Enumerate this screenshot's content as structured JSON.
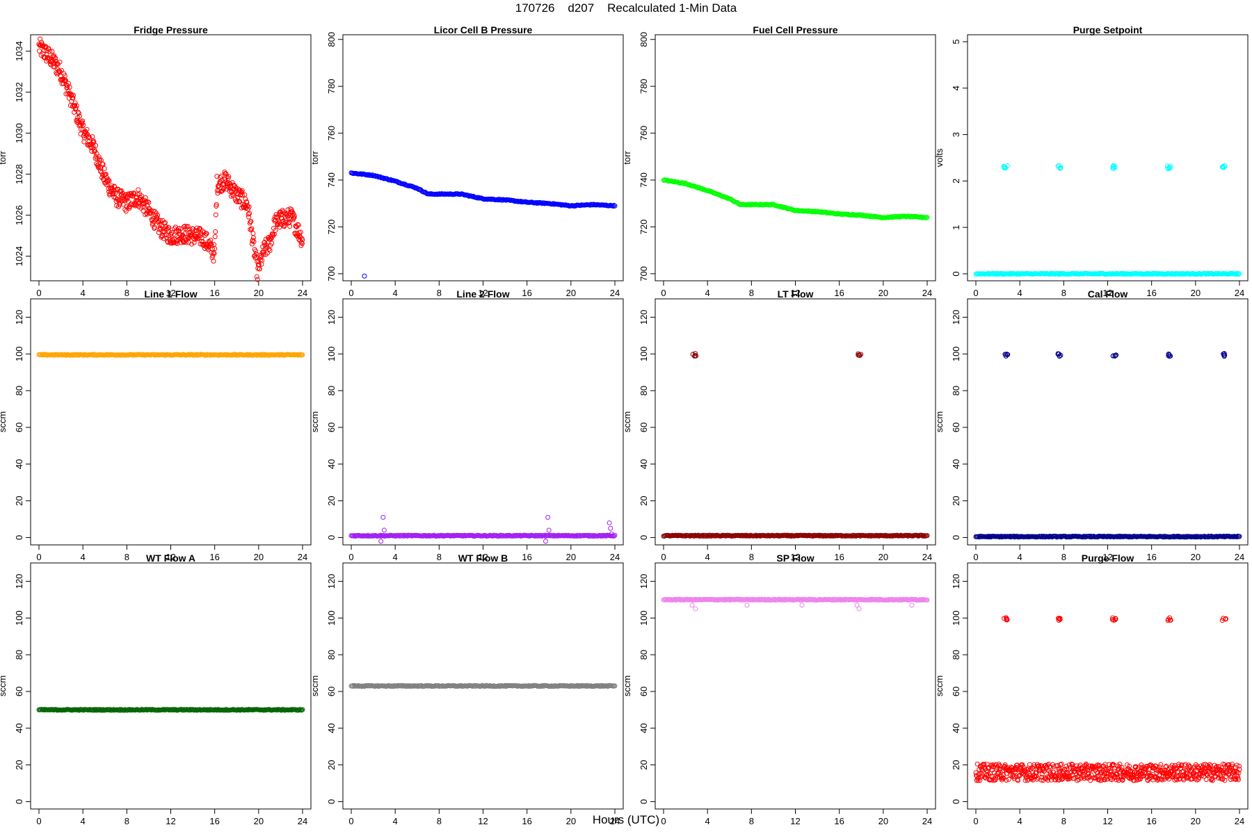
{
  "figure": {
    "title": "170726    d207    Recalculated 1-Min Data",
    "xlabel": "Hours (UTC)"
  },
  "chart_data": [
    {
      "type": "scatter",
      "title": "Fridge Pressure",
      "ylabel": "torr",
      "color": "#ff0000",
      "marker": "open-circle",
      "xlim": [
        0,
        24
      ],
      "ylim": [
        1022.8,
        1034.8
      ],
      "xticks": [
        0,
        4,
        8,
        12,
        16,
        20,
        24
      ],
      "yticks": [
        1024,
        1026,
        1028,
        1030,
        1032,
        1034
      ],
      "series": [
        {
          "x": [
            0,
            1,
            2,
            3,
            4,
            5,
            6,
            7,
            8,
            9,
            10,
            11,
            12,
            13,
            14,
            15,
            16,
            16.2,
            17,
            18,
            19,
            19.9,
            20.5,
            21,
            21.5,
            22,
            23,
            24
          ],
          "y": [
            1034.2,
            1033.7,
            1033.0,
            1031.6,
            1030.1,
            1029.3,
            1027.8,
            1026.9,
            1026.6,
            1026.9,
            1026.2,
            1025.4,
            1025.0,
            1025.1,
            1025.0,
            1024.9,
            1024.1,
            1027.5,
            1027.7,
            1027.0,
            1026.5,
            1023.2,
            1024.3,
            1024.6,
            1025.6,
            1025.8,
            1025.9,
            1024.8
          ]
        }
      ]
    },
    {
      "type": "scatter",
      "title": "Licor Cell B Pressure",
      "ylabel": "torr",
      "color": "#0000ff",
      "marker": "open-circle",
      "xlim": [
        0,
        24
      ],
      "ylim": [
        697,
        802
      ],
      "xticks": [
        0,
        4,
        8,
        12,
        16,
        20,
        24
      ],
      "yticks": [
        700,
        720,
        740,
        760,
        780,
        800
      ],
      "series": [
        {
          "x": [
            0,
            2,
            4,
            6,
            7,
            8,
            10,
            12,
            14,
            16,
            18,
            20,
            22,
            24
          ],
          "y": [
            743,
            742,
            739.5,
            736.5,
            734,
            734,
            734,
            732,
            731.5,
            730.5,
            730,
            729,
            729.5,
            729
          ]
        },
        {
          "x": [
            1.2
          ],
          "y": [
            699
          ]
        }
      ]
    },
    {
      "type": "scatter",
      "title": "Fuel Cell Pressure",
      "ylabel": "torr",
      "color": "#00ff00",
      "marker": "open-circle",
      "xlim": [
        0,
        24
      ],
      "ylim": [
        697,
        802
      ],
      "xticks": [
        0,
        4,
        8,
        12,
        16,
        20,
        24
      ],
      "yticks": [
        700,
        720,
        740,
        760,
        780,
        800
      ],
      "series": [
        {
          "x": [
            0,
            2,
            4,
            6,
            7,
            8,
            10,
            12,
            14,
            16,
            18,
            20,
            22,
            24
          ],
          "y": [
            740,
            738.5,
            735.5,
            732,
            729.5,
            729.5,
            729.5,
            727,
            726.5,
            725.5,
            725,
            724,
            724.5,
            724
          ]
        }
      ]
    },
    {
      "type": "scatter",
      "title": "Purge Setpoint",
      "ylabel": "volts",
      "color": "#00ffff",
      "marker": "open-circle",
      "xlim": [
        0,
        24
      ],
      "ylim": [
        -0.15,
        5.15
      ],
      "xticks": [
        0,
        4,
        8,
        12,
        16,
        20,
        24
      ],
      "yticks": [
        0,
        1,
        2,
        3,
        4,
        5
      ],
      "series": [
        {
          "x": [
            0,
            24
          ],
          "y": [
            0,
            0
          ]
        },
        {
          "x": [
            2.7,
            7.6,
            12.6,
            17.6,
            22.6
          ],
          "y": [
            2.3,
            2.3,
            2.3,
            2.3,
            2.3
          ]
        }
      ]
    },
    {
      "type": "scatter",
      "title": "Line 1 Flow",
      "ylabel": "sccm",
      "color": "#ffa500",
      "marker": "open-circle",
      "xlim": [
        0,
        24
      ],
      "ylim": [
        -4,
        130
      ],
      "xticks": [
        0,
        4,
        8,
        12,
        16,
        20,
        24
      ],
      "yticks": [
        0,
        20,
        40,
        60,
        80,
        100,
        120
      ],
      "series": [
        {
          "x": [
            0,
            24
          ],
          "y": [
            99.5,
            99.5
          ]
        }
      ]
    },
    {
      "type": "scatter",
      "title": "Line 2 Flow",
      "ylabel": "sccm",
      "color": "#a020f0",
      "marker": "open-circle",
      "xlim": [
        0,
        24
      ],
      "ylim": [
        -4,
        130
      ],
      "xticks": [
        0,
        4,
        8,
        12,
        16,
        20,
        24
      ],
      "yticks": [
        0,
        20,
        40,
        60,
        80,
        100,
        120
      ],
      "series": [
        {
          "x": [
            0,
            24
          ],
          "y": [
            1,
            1
          ]
        },
        {
          "x": [
            2.7,
            2.9,
            3.0,
            17.7,
            17.9,
            18.0,
            23.5,
            23.6,
            23.7
          ],
          "y": [
            -2,
            11,
            4,
            -2,
            11,
            4,
            8,
            5,
            2
          ]
        }
      ]
    },
    {
      "type": "scatter",
      "title": "LT Flow",
      "ylabel": "sccm",
      "color": "#8b0000",
      "marker": "open-circle",
      "xlim": [
        0,
        24
      ],
      "ylim": [
        -4,
        130
      ],
      "xticks": [
        0,
        4,
        8,
        12,
        16,
        20,
        24
      ],
      "yticks": [
        0,
        20,
        40,
        60,
        80,
        100,
        120
      ],
      "series": [
        {
          "x": [
            0,
            24
          ],
          "y": [
            1,
            1
          ]
        },
        {
          "x": [
            2.8,
            17.8
          ],
          "y": [
            99.5,
            99.5
          ]
        }
      ]
    },
    {
      "type": "scatter",
      "title": "Cal Flow",
      "ylabel": "sccm",
      "color": "#00008b",
      "marker": "open-circle",
      "xlim": [
        0,
        24
      ],
      "ylim": [
        -4,
        130
      ],
      "xticks": [
        0,
        4,
        8,
        12,
        16,
        20,
        24
      ],
      "yticks": [
        0,
        20,
        40,
        60,
        80,
        100,
        120
      ],
      "series": [
        {
          "x": [
            0,
            24
          ],
          "y": [
            0.5,
            0.5
          ]
        },
        {
          "x": [
            2.8,
            7.6,
            12.6,
            17.6,
            22.6
          ],
          "y": [
            99.5,
            99.5,
            99.5,
            99.5,
            99.5
          ]
        }
      ]
    },
    {
      "type": "scatter",
      "title": "WT Flow A",
      "ylabel": "sccm",
      "color": "#006400",
      "marker": "open-circle",
      "xlim": [
        0,
        24
      ],
      "ylim": [
        -4,
        130
      ],
      "xticks": [
        0,
        4,
        8,
        12,
        16,
        20,
        24
      ],
      "yticks": [
        0,
        20,
        40,
        60,
        80,
        100,
        120
      ],
      "series": [
        {
          "x": [
            0,
            24
          ],
          "y": [
            50,
            50
          ]
        }
      ]
    },
    {
      "type": "scatter",
      "title": "WT Flow B",
      "ylabel": "sccm",
      "color": "#808080",
      "marker": "open-circle",
      "xlim": [
        0,
        24
      ],
      "ylim": [
        -4,
        130
      ],
      "xticks": [
        0,
        4,
        8,
        12,
        16,
        20,
        24
      ],
      "yticks": [
        0,
        20,
        40,
        60,
        80,
        100,
        120
      ],
      "series": [
        {
          "x": [
            0,
            24
          ],
          "y": [
            63,
            63
          ]
        }
      ]
    },
    {
      "type": "scatter",
      "title": "SP Flow",
      "ylabel": "sccm",
      "color": "#ee82ee",
      "marker": "open-circle",
      "xlim": [
        0,
        24
      ],
      "ylim": [
        -4,
        130
      ],
      "xticks": [
        0,
        4,
        8,
        12,
        16,
        20,
        24
      ],
      "yticks": [
        0,
        20,
        40,
        60,
        80,
        100,
        120
      ],
      "series": [
        {
          "x": [
            0,
            24
          ],
          "y": [
            110,
            110
          ]
        },
        {
          "x": [
            2.6,
            2.9,
            7.6,
            12.6,
            17.6,
            17.8,
            22.6
          ],
          "y": [
            107,
            105,
            107,
            107,
            107,
            105,
            107
          ]
        }
      ]
    },
    {
      "type": "scatter",
      "title": "Purge Flow",
      "ylabel": "sccm",
      "color": "#ff0000",
      "marker": "open-circle",
      "xlim": [
        0,
        24
      ],
      "ylim": [
        -4,
        130
      ],
      "xticks": [
        0,
        4,
        8,
        12,
        16,
        20,
        24
      ],
      "yticks": [
        0,
        20,
        40,
        60,
        80,
        100,
        120
      ],
      "series": [
        {
          "x": [
            0,
            24
          ],
          "y": [
            16,
            16
          ]
        },
        {
          "x": [
            2.7,
            7.6,
            12.6,
            17.6,
            22.6
          ],
          "y": [
            99.5,
            99.5,
            99.5,
            99.5,
            99.5
          ]
        }
      ]
    }
  ]
}
